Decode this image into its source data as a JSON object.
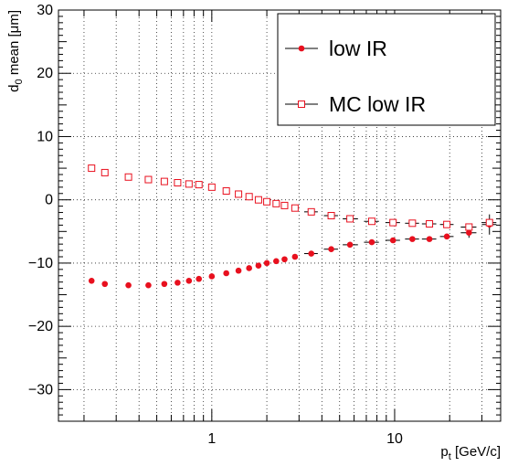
{
  "chart_data": {
    "type": "scatter",
    "xscale": "log",
    "xlim": [
      0.145,
      38
    ],
    "ylim": [
      -35,
      30
    ],
    "grid": true,
    "xlabel": {
      "main": "p",
      "sub": "t",
      "rest": " [GeV/c]"
    },
    "ylabel": {
      "main": "d",
      "sub": "0",
      "rest": " mean [μm]"
    },
    "yticks": [
      -30,
      -20,
      -10,
      0,
      10,
      20,
      30
    ],
    "yticklabels": [
      "−30",
      "−20",
      "−10",
      "0",
      "10",
      "20",
      "30"
    ],
    "xticks_major": [
      1,
      10
    ],
    "xticklabels": [
      "1",
      "10"
    ],
    "legend_position": "top-right",
    "series": [
      {
        "name": "low IR",
        "marker": "filled-circle",
        "color": "#e8101e",
        "points": [
          {
            "x": 0.22,
            "y": -12.8
          },
          {
            "x": 0.26,
            "y": -13.3
          },
          {
            "x": 0.35,
            "y": -13.5
          },
          {
            "x": 0.45,
            "y": -13.5
          },
          {
            "x": 0.55,
            "y": -13.3
          },
          {
            "x": 0.65,
            "y": -13.1
          },
          {
            "x": 0.75,
            "y": -12.8
          },
          {
            "x": 0.85,
            "y": -12.5
          },
          {
            "x": 1.0,
            "y": -12.1
          },
          {
            "x": 1.2,
            "y": -11.6
          },
          {
            "x": 1.4,
            "y": -11.2
          },
          {
            "x": 1.6,
            "y": -10.8
          },
          {
            "x": 1.8,
            "y": -10.4
          },
          {
            "x": 2.0,
            "y": -10.0
          },
          {
            "x": 2.25,
            "y": -9.7
          },
          {
            "x": 2.5,
            "y": -9.4
          },
          {
            "x": 2.85,
            "y": -9.0
          },
          {
            "x": 3.5,
            "y": -8.5,
            "xerr": [
              3.2,
              3.8
            ]
          },
          {
            "x": 4.5,
            "y": -7.8,
            "xerr": [
              4.1,
              4.9
            ]
          },
          {
            "x": 5.7,
            "y": -7.1,
            "xerr": [
              5.2,
              6.3
            ]
          },
          {
            "x": 7.5,
            "y": -6.7,
            "xerr": [
              6.8,
              8.2
            ]
          },
          {
            "x": 9.8,
            "y": -6.4,
            "xerr": [
              8.9,
              10.7
            ]
          },
          {
            "x": 12.5,
            "y": -6.2,
            "xerr": [
              11.4,
              13.6
            ]
          },
          {
            "x": 15.5,
            "y": -6.2,
            "xerr": [
              14.1,
              16.9
            ]
          },
          {
            "x": 19.3,
            "y": -5.8,
            "xerr": [
              17.7,
              21.0
            ]
          },
          {
            "x": 25.5,
            "y": -5.2,
            "xerr": [
              23.0,
              28.0
            ],
            "yerr": 0.8
          },
          {
            "x": 33.0,
            "y": -3.9,
            "xerr": [
              30.0,
              36.0
            ],
            "yerr": 1.6
          }
        ]
      },
      {
        "name": "MC low IR",
        "marker": "open-square",
        "color": "#e8101e",
        "points": [
          {
            "x": 0.22,
            "y": 5.0
          },
          {
            "x": 0.26,
            "y": 4.3
          },
          {
            "x": 0.35,
            "y": 3.6
          },
          {
            "x": 0.45,
            "y": 3.2
          },
          {
            "x": 0.55,
            "y": 2.9
          },
          {
            "x": 0.65,
            "y": 2.7
          },
          {
            "x": 0.75,
            "y": 2.5
          },
          {
            "x": 0.85,
            "y": 2.4
          },
          {
            "x": 1.0,
            "y": 2.0
          },
          {
            "x": 1.2,
            "y": 1.4
          },
          {
            "x": 1.4,
            "y": 0.9
          },
          {
            "x": 1.6,
            "y": 0.5
          },
          {
            "x": 1.8,
            "y": 0.0
          },
          {
            "x": 2.0,
            "y": -0.3
          },
          {
            "x": 2.25,
            "y": -0.6
          },
          {
            "x": 2.5,
            "y": -0.9
          },
          {
            "x": 2.85,
            "y": -1.3
          },
          {
            "x": 3.5,
            "y": -1.9,
            "xerr": [
              3.2,
              3.8
            ]
          },
          {
            "x": 4.5,
            "y": -2.5,
            "xerr": [
              4.1,
              4.9
            ]
          },
          {
            "x": 5.7,
            "y": -3.0,
            "xerr": [
              5.2,
              6.3
            ]
          },
          {
            "x": 7.5,
            "y": -3.4,
            "xerr": [
              6.8,
              8.2
            ]
          },
          {
            "x": 9.8,
            "y": -3.6,
            "xerr": [
              8.9,
              10.7
            ]
          },
          {
            "x": 12.5,
            "y": -3.7,
            "xerr": [
              11.4,
              13.6
            ]
          },
          {
            "x": 15.5,
            "y": -3.8,
            "xerr": [
              14.1,
              16.9
            ]
          },
          {
            "x": 19.3,
            "y": -3.9,
            "xerr": [
              17.7,
              21.0
            ]
          },
          {
            "x": 25.5,
            "y": -4.3,
            "xerr": [
              23.0,
              28.0
            ]
          },
          {
            "x": 33.0,
            "y": -3.6,
            "xerr": [
              30.0,
              36.0
            ],
            "yerr": 0.5
          }
        ]
      }
    ]
  }
}
